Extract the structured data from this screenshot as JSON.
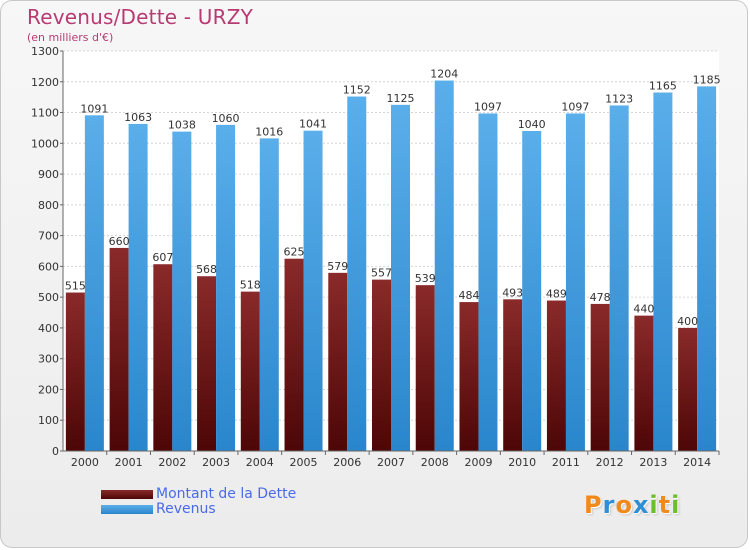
{
  "header": {
    "title": "Revenus/Dette - URZY",
    "subtitle": "(en milliers d'€)"
  },
  "colors": {
    "debt": "#7a1f1f",
    "revenue": "#3d9be0",
    "title": "#b83a73",
    "legend_text": "#4a6ae8"
  },
  "legend": {
    "items": [
      {
        "label": "Montant de la Dette",
        "color": "#6b1414"
      },
      {
        "label": "Revenus",
        "color": "#3d9be0"
      }
    ]
  },
  "logo": {
    "letters": [
      "P",
      "r",
      "o",
      "x",
      "i",
      "t",
      "i"
    ],
    "colors": [
      "#f08a1c",
      "#2e8fd6",
      "#f08a1c",
      "#2e8fd6",
      "#6cbf2a",
      "#f08a1c",
      "#6cbf2a"
    ]
  },
  "chart_data": {
    "type": "bar",
    "title": "Revenus/Dette - URZY",
    "ylabel": "(en milliers d'€)",
    "xlabel": "",
    "categories": [
      "2000",
      "2001",
      "2002",
      "2003",
      "2004",
      "2005",
      "2006",
      "2007",
      "2008",
      "2009",
      "2010",
      "2011",
      "2012",
      "2013",
      "2014"
    ],
    "series": [
      {
        "name": "Montant de la Dette",
        "values": [
          515,
          660,
          607,
          568,
          518,
          625,
          579,
          557,
          539,
          484,
          493,
          489,
          478,
          440,
          400
        ]
      },
      {
        "name": "Revenus",
        "values": [
          1091,
          1063,
          1038,
          1060,
          1016,
          1041,
          1152,
          1125,
          1204,
          1097,
          1040,
          1097,
          1123,
          1165,
          1185
        ]
      }
    ],
    "ylim": [
      0,
      1300
    ],
    "yticks": [
      0,
      100,
      200,
      300,
      400,
      500,
      600,
      700,
      800,
      900,
      1000,
      1100,
      1200,
      1300
    ],
    "grid": true,
    "legend_position": "bottom-left"
  }
}
